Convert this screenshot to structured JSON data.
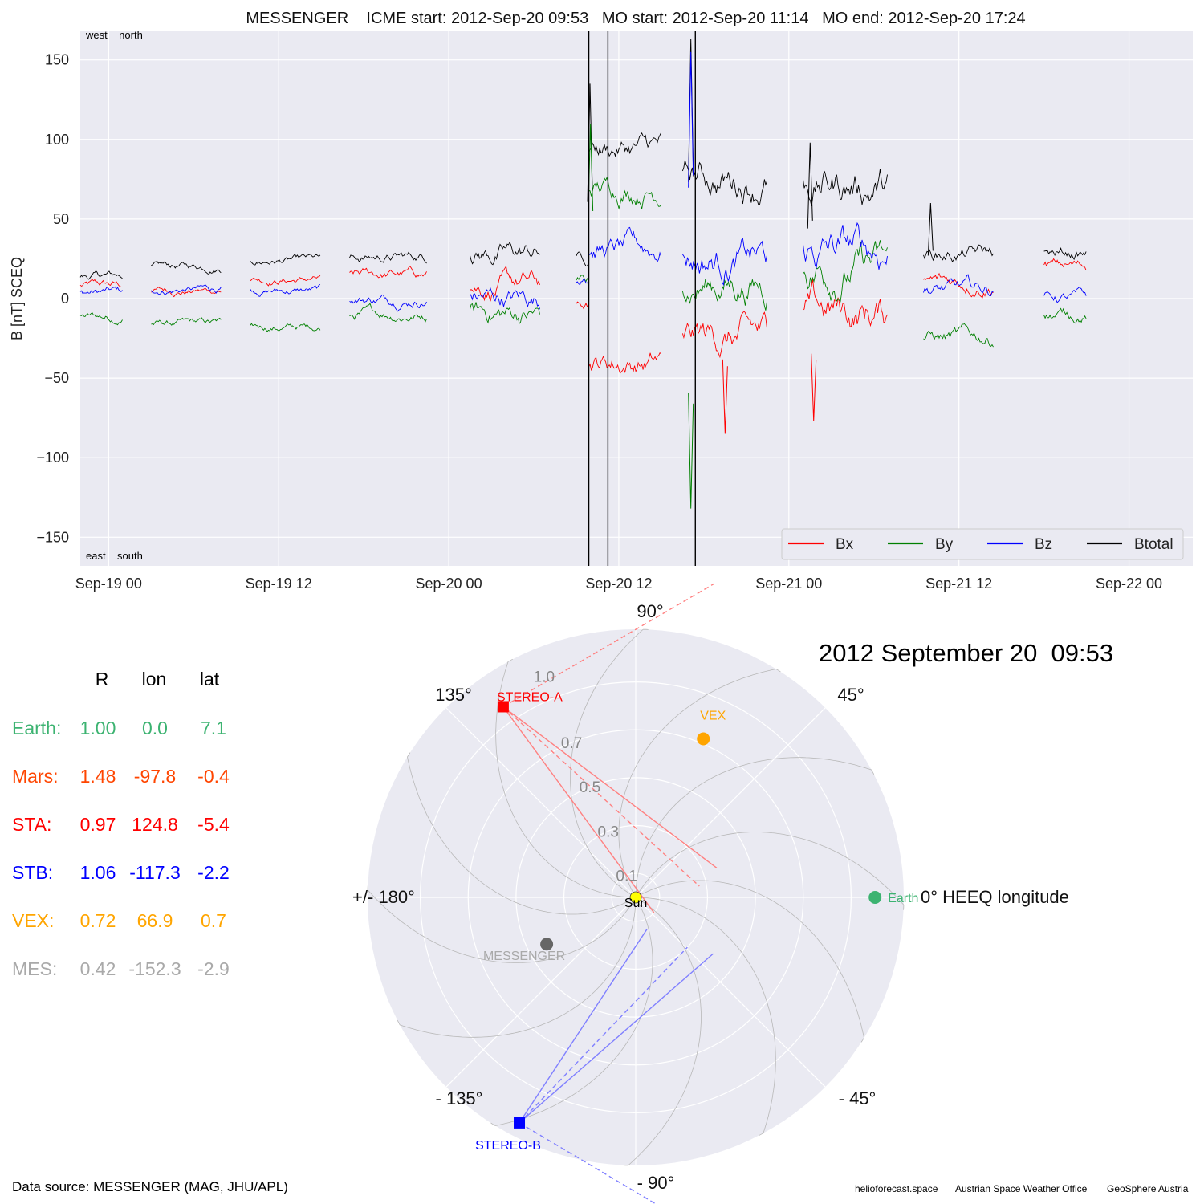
{
  "chart_data": [
    {
      "type": "line",
      "title": "MESSENGER    ICME start: 2012-Sep-20 09:53   MO start: 2012-Sep-20 11:14   MO end: 2012-Sep-20 17:24",
      "ylabel": "B [nT] SCEQ",
      "xlabel": "",
      "ylim": [
        -168,
        168
      ],
      "xlim": [
        "2012-09-18T22:00",
        "2012-09-22T04:30"
      ],
      "yticks": [
        -150,
        -100,
        -50,
        0,
        50,
        100,
        150
      ],
      "ytick_labels": [
        "−150",
        "−100",
        "−50",
        "0",
        "50",
        "100",
        "150"
      ],
      "xticks": [
        "2012-09-19T00:00",
        "2012-09-19T12:00",
        "2012-09-20T00:00",
        "2012-09-20T12:00",
        "2012-09-21T00:00",
        "2012-09-21T12:00",
        "2012-09-22T00:00"
      ],
      "xtick_labels": [
        "Sep-19 00",
        "Sep-19 12",
        "Sep-20 00",
        "Sep-20 12",
        "Sep-21 00",
        "Sep-21 12",
        "Sep-22 00"
      ],
      "grid": true,
      "legend": "bottom-right",
      "corner_labels": {
        "top": "west    north",
        "bottom": "east    south"
      },
      "event_lines": [
        "2012-09-20T09:53",
        "2012-09-20T11:14",
        "2012-09-20T17:24"
      ],
      "segments": [
        {
          "start": "2012-09-18T22:00",
          "end": "2012-09-19T01:00",
          "bx": 8,
          "by": -12,
          "bz": 4,
          "bt": 14,
          "noise": 6
        },
        {
          "start": "2012-09-19T03:00",
          "end": "2012-09-19T08:00",
          "bx": 5,
          "by": -16,
          "bz": 6,
          "bt": 20,
          "noise": 5
        },
        {
          "start": "2012-09-19T10:00",
          "end": "2012-09-19T15:00",
          "bx": 12,
          "by": -18,
          "bz": 5,
          "bt": 24,
          "noise": 5
        },
        {
          "start": "2012-09-19T17:00",
          "end": "2012-09-19T22:30",
          "bx": 15,
          "by": -10,
          "bz": 0,
          "bt": 26,
          "noise": 7
        },
        {
          "start": "2012-09-20T01:30",
          "end": "2012-09-20T06:30",
          "bx": 8,
          "by": -10,
          "bz": 0,
          "bt": 28,
          "noise": 14
        },
        {
          "start": "2012-09-20T09:00",
          "end": "2012-09-20T09:53",
          "bx": -5,
          "by": 10,
          "bz": 12,
          "bt": 25,
          "noise": 8
        },
        {
          "start": "2012-09-20T09:53",
          "end": "2012-09-20T15:00",
          "bx": -40,
          "by": 70,
          "bz": 30,
          "bt": 95,
          "noise": 15
        },
        {
          "start": "2012-09-20T16:30",
          "end": "2012-09-20T22:30",
          "bx": -25,
          "by": 10,
          "bz": 25,
          "bt": 75,
          "noise": 22
        },
        {
          "start": "2012-09-21T01:00",
          "end": "2012-09-21T07:00",
          "bx": -10,
          "by": 20,
          "bz": 30,
          "bt": 72,
          "noise": 25
        },
        {
          "start": "2012-09-21T09:30",
          "end": "2012-09-21T14:30",
          "bx": 10,
          "by": -25,
          "bz": 5,
          "bt": 28,
          "noise": 10
        },
        {
          "start": "2012-09-21T18:00",
          "end": "2012-09-21T21:00",
          "bx": 20,
          "by": -10,
          "bz": 0,
          "bt": 28,
          "noise": 8
        }
      ],
      "spikes": [
        {
          "time": "2012-09-20T17:05",
          "series": "Bt",
          "value": 163
        },
        {
          "time": "2012-09-20T17:05",
          "series": "Bz",
          "value": 155
        },
        {
          "time": "2012-09-20T17:05",
          "series": "By",
          "value": -132
        },
        {
          "time": "2012-09-20T09:58",
          "series": "Bt",
          "value": 135
        },
        {
          "time": "2012-09-20T10:00",
          "series": "By",
          "value": 110
        },
        {
          "time": "2012-09-20T19:30",
          "series": "Bx",
          "value": -85
        },
        {
          "time": "2012-09-21T01:30",
          "series": "Bt",
          "value": 98
        },
        {
          "time": "2012-09-21T01:45",
          "series": "Bx",
          "value": -77
        },
        {
          "time": "2012-09-21T10:00",
          "series": "Bt",
          "value": 60
        }
      ],
      "series": [
        {
          "name": "Bx",
          "color": "#ff0000"
        },
        {
          "name": "By",
          "color": "#008000"
        },
        {
          "name": "Bz",
          "color": "#0000ff"
        },
        {
          "name": "Btotal",
          "color": "#000000"
        }
      ]
    },
    {
      "type": "scatter",
      "title": "2012 September 20  09:53",
      "coordinate_system": "polar",
      "rmax": 1.12,
      "ring_labels": [
        "0.1",
        "0.3",
        "0.5",
        "0.7",
        "1.0"
      ],
      "ring_values": [
        0.1,
        0.3,
        0.5,
        0.7,
        1.0
      ],
      "angle_labels": [
        {
          "text": "0° HEEQ longitude",
          "deg": 0
        },
        {
          "text": "45°",
          "deg": 45
        },
        {
          "text": "90°",
          "deg": 90
        },
        {
          "text": "135°",
          "deg": 135
        },
        {
          "text": "+/- 180°",
          "deg": 180
        },
        {
          "text": "- 135°",
          "deg": -135
        },
        {
          "text": "- 90°",
          "deg": -90
        },
        {
          "text": "- 45°",
          "deg": -45
        }
      ],
      "bodies": [
        {
          "name": "Sun",
          "r": 0,
          "lon": 0,
          "color": "#ffff00",
          "label_color": "#000000",
          "shape": "circle"
        },
        {
          "name": "Earth",
          "r": 1.0,
          "lon": 0.0,
          "color": "#3cb371",
          "label_color": "#3cb371",
          "shape": "circle"
        },
        {
          "name": "VEX",
          "r": 0.72,
          "lon": 66.9,
          "color": "#ffa500",
          "label_color": "#ffa500",
          "shape": "circle"
        },
        {
          "name": "MESSENGER",
          "r": 0.42,
          "lon": -152.3,
          "color": "#666666",
          "label_color": "#a9a9a9",
          "shape": "circle"
        },
        {
          "name": "STEREO-A",
          "r": 0.97,
          "lon": 124.8,
          "color": "#ff0000",
          "label_color": "#ff0000",
          "shape": "square"
        },
        {
          "name": "STEREO-B",
          "r": 1.06,
          "lon": -117.3,
          "color": "#0000ff",
          "label_color": "#0000ff",
          "shape": "square"
        }
      ],
      "fov_lines": [
        {
          "from": "STEREO-A",
          "to_r": 0.1,
          "to_lon": -40,
          "color": "#ff8080",
          "dashed": false
        },
        {
          "from": "STEREO-A",
          "to_r": 0.36,
          "to_lon": 20,
          "color": "#ff8080",
          "dashed": false
        },
        {
          "from": "STEREO-A",
          "to_r": 0.27,
          "to_lon": 10,
          "color": "#ff8080",
          "dashed": true
        },
        {
          "from": "STEREO-A",
          "to_r": 1.35,
          "to_lon": 76,
          "color": "#ff8080",
          "dashed": true
        },
        {
          "from": "STEREO-B",
          "to_r": 0.14,
          "to_lon": -70,
          "color": "#8080ff",
          "dashed": false
        },
        {
          "from": "STEREO-B",
          "to_r": 0.4,
          "to_lon": -36,
          "color": "#8080ff",
          "dashed": false
        },
        {
          "from": "STEREO-B",
          "to_r": 0.3,
          "to_lon": -44,
          "color": "#8080ff",
          "dashed": true
        },
        {
          "from": "STEREO-B",
          "to_r": 1.32,
          "to_lon": -84,
          "color": "#8080ff",
          "dashed": true
        }
      ]
    }
  ],
  "position_table": {
    "headers": [
      "R",
      "lon",
      "lat"
    ],
    "rows": [
      {
        "label": "Earth:",
        "r": "1.00",
        "lon": "0.0",
        "lat": "7.1",
        "color": "#3cb371"
      },
      {
        "label": "Mars:",
        "r": "1.48",
        "lon": "-97.8",
        "lat": "-0.4",
        "color": "#ff4500"
      },
      {
        "label": "STA:",
        "r": "0.97",
        "lon": "124.8",
        "lat": "-5.4",
        "color": "#ff0000"
      },
      {
        "label": "STB:",
        "r": "1.06",
        "lon": "-117.3",
        "lat": "-2.2",
        "color": "#0000ff"
      },
      {
        "label": "VEX:",
        "r": "0.72",
        "lon": "66.9",
        "lat": "0.7",
        "color": "#ffa500"
      },
      {
        "label": "MES:",
        "r": "0.42",
        "lon": "-152.3",
        "lat": "-2.9",
        "color": "#a9a9a9"
      }
    ]
  },
  "footer": {
    "source": "Data source: MESSENGER (MAG, JHU/APL)",
    "credits": [
      "helioforecast.space",
      "Austrian Space Weather Office",
      "GeoSphere Austria"
    ]
  }
}
